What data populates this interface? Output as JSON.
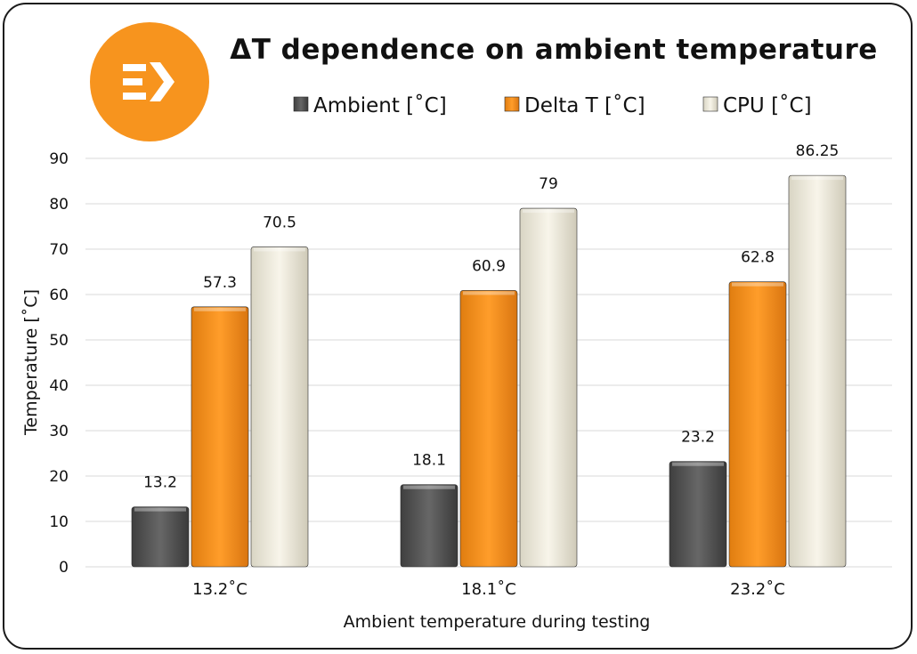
{
  "chart_data": {
    "type": "bar",
    "title": "ΔT dependence on ambient temperature",
    "xlabel": "Ambient temperature during testing",
    "ylabel": "Temperature [˚C]",
    "categories": [
      "13.2˚C",
      "18.1˚C",
      "23.2˚C"
    ],
    "ylim": [
      0,
      90
    ],
    "yticks": [
      0,
      10,
      20,
      30,
      40,
      50,
      60,
      70,
      80,
      90
    ],
    "grid": true,
    "legend_position": "top",
    "series": [
      {
        "name": "Ambient [˚C]",
        "values": [
          13.2,
          18.1,
          23.2
        ],
        "labels": [
          "13.2",
          "18.1",
          "23.2"
        ],
        "color": "#5b5b5b"
      },
      {
        "name": "Delta T [˚C]",
        "values": [
          57.3,
          60.9,
          62.8
        ],
        "labels": [
          "57.3",
          "60.9",
          "62.8"
        ],
        "color": "#f7941e"
      },
      {
        "name": "CPU [˚C]",
        "values": [
          70.5,
          79,
          86.25
        ],
        "labels": [
          "70.5",
          "79",
          "86.25"
        ],
        "color": "#f3f0e2"
      }
    ]
  },
  "logo": {
    "name": "ek-logo",
    "color": "#f7941e"
  }
}
